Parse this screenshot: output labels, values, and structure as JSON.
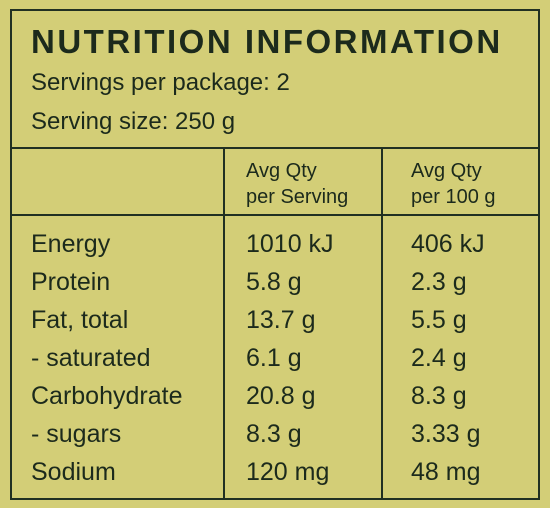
{
  "panel": {
    "title": "NUTRITION INFORMATION",
    "servings_per_package": "Servings per package: 2",
    "serving_size": "Serving size: 250 g"
  },
  "columns": {
    "per_serving": {
      "line1": "Avg Qty",
      "line2": "per Serving"
    },
    "per_100g": {
      "line1": "Avg Qty",
      "line2": "per 100 g"
    }
  },
  "rows": [
    {
      "nutrient": "Energy",
      "per_serving": "1010 kJ",
      "per_100g": "406 kJ"
    },
    {
      "nutrient": "Protein",
      "per_serving": "5.8 g",
      "per_100g": "2.3 g"
    },
    {
      "nutrient": "Fat, total",
      "per_serving": "13.7 g",
      "per_100g": "5.5 g"
    },
    {
      "nutrient": "- saturated",
      "per_serving": "6.1 g",
      "per_100g": "2.4 g"
    },
    {
      "nutrient": "Carbohydrate",
      "per_serving": "20.8 g",
      "per_100g": "8.3 g"
    },
    {
      "nutrient": "- sugars",
      "per_serving": "8.3 g",
      "per_100g": "3.33 g"
    },
    {
      "nutrient": "Sodium",
      "per_serving": "120 mg",
      "per_100g": "48 mg"
    }
  ],
  "colors": {
    "background": "#d3ce77",
    "ink": "#1c2a1c",
    "border": "#213022"
  }
}
